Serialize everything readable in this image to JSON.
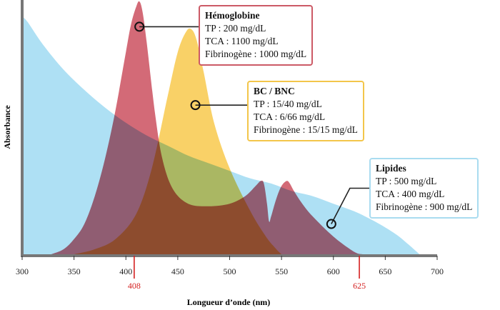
{
  "chart_data": {
    "type": "area",
    "xlabel": "Longueur d’onde (nm)",
    "ylabel": "Absorbance",
    "xlim": [
      300,
      700
    ],
    "x_ticks": [
      300,
      350,
      400,
      450,
      500,
      550,
      600,
      650,
      700
    ],
    "grid": false,
    "markers": [
      {
        "x": 408,
        "label": "408"
      },
      {
        "x": 625,
        "label": "625"
      }
    ],
    "series": [
      {
        "name": "Lipides",
        "color": "#aee0f4",
        "x": [
          300,
          305,
          320,
          340,
          360,
          380,
          400,
          420,
          440,
          460,
          480,
          500,
          520,
          540,
          560,
          580,
          600,
          620,
          640,
          660,
          672,
          683
        ],
        "y": [
          0.94,
          0.92,
          0.83,
          0.73,
          0.65,
          0.58,
          0.52,
          0.47,
          0.43,
          0.39,
          0.36,
          0.33,
          0.3,
          0.28,
          0.25,
          0.23,
          0.2,
          0.17,
          0.13,
          0.08,
          0.04,
          0.0
        ]
      },
      {
        "name": "Hémoglobine",
        "color": "#cd5564",
        "x": [
          328,
          340,
          350,
          360,
          370,
          380,
          390,
          400,
          405,
          410,
          413,
          416,
          420,
          428,
          435,
          445,
          460,
          480,
          500,
          515,
          525,
          530,
          533,
          536,
          538,
          540,
          545,
          550,
          555,
          558,
          562,
          570,
          580,
          600,
          620,
          628
        ],
        "y": [
          0.0,
          0.02,
          0.06,
          0.12,
          0.23,
          0.38,
          0.57,
          0.8,
          0.91,
          0.98,
          1.0,
          0.96,
          0.84,
          0.56,
          0.38,
          0.26,
          0.2,
          0.19,
          0.2,
          0.23,
          0.27,
          0.29,
          0.28,
          0.2,
          0.13,
          0.15,
          0.22,
          0.27,
          0.29,
          0.28,
          0.25,
          0.2,
          0.15,
          0.07,
          0.01,
          0.0
        ]
      },
      {
        "name": "BC / BNC",
        "color": "#f8c94c",
        "x": [
          350,
          370,
          390,
          410,
          425,
          440,
          450,
          458,
          463,
          468,
          475,
          485,
          500,
          520,
          535,
          545,
          550
        ],
        "y": [
          0.0,
          0.02,
          0.06,
          0.16,
          0.34,
          0.62,
          0.8,
          0.88,
          0.89,
          0.85,
          0.72,
          0.52,
          0.34,
          0.17,
          0.07,
          0.02,
          0.0
        ]
      }
    ],
    "annotations": [
      {
        "series": "Hémoglobine",
        "title": "Hémoglobine",
        "color": "#cc5a66",
        "lines": [
          "TP : 200 mg/dL",
          "TCA : 1100 mg/dL",
          "Fibrinogène : 1000 mg/dL"
        ]
      },
      {
        "series": "BC / BNC",
        "title": "BC / BNC",
        "color": "#f3c64a",
        "lines": [
          "TP : 15/40 mg/dL",
          "TCA : 6/66 mg/dL",
          "Fibrinogène : 15/15 mg/dL"
        ]
      },
      {
        "series": "Lipides",
        "title": "Lipides",
        "color": "#a9dcf0",
        "lines": [
          "TP : 500 mg/dL",
          "TCA : 400 mg/dL",
          "Fibrinogène : 900 mg/dL"
        ]
      }
    ]
  }
}
